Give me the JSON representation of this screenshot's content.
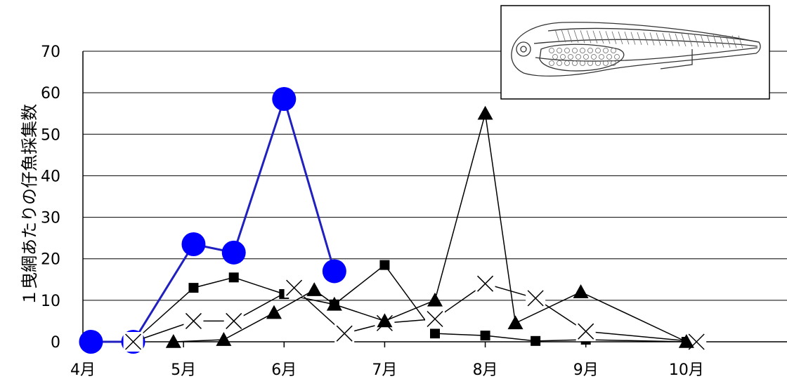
{
  "chart_data": {
    "type": "line",
    "title": "",
    "xlabel": "",
    "ylabel": "１曳網あたりの仔魚採集数",
    "ylim": [
      0,
      70
    ],
    "yticks": [
      0,
      10,
      20,
      30,
      40,
      50,
      60,
      70
    ],
    "xlim": [
      4.0,
      11.0
    ],
    "xticks": [
      {
        "value": 4,
        "label": "4月"
      },
      {
        "value": 5,
        "label": "5月"
      },
      {
        "value": 6,
        "label": "6月"
      },
      {
        "value": 7,
        "label": "7月"
      },
      {
        "value": 8,
        "label": "8月"
      },
      {
        "value": 9,
        "label": "9月"
      },
      {
        "value": 10,
        "label": "10月"
      }
    ],
    "grid": true,
    "inset_image": "fish-larva-illustration",
    "series": [
      {
        "marker": "circle",
        "color": "#0000ff",
        "line_color": "#2020c0",
        "points": [
          {
            "x": 4.08,
            "y": 0
          },
          {
            "x": 4.5,
            "y": 0
          },
          {
            "x": 5.1,
            "y": 23.5
          },
          {
            "x": 5.5,
            "y": 21.5
          },
          {
            "x": 6.0,
            "y": 58.5
          },
          {
            "x": 6.5,
            "y": 17.0
          }
        ]
      },
      {
        "marker": "square",
        "color": "#000000",
        "line_color": "#000000",
        "points": [
          {
            "x": 4.5,
            "y": 0
          },
          {
            "x": 5.1,
            "y": 13.0
          },
          {
            "x": 5.5,
            "y": 15.5
          },
          {
            "x": 6.0,
            "y": 11.5
          },
          {
            "x": 6.5,
            "y": 9.0
          },
          {
            "x": 7.0,
            "y": 18.5
          },
          {
            "x": 7.5,
            "y": 2.0
          },
          {
            "x": 8.0,
            "y": 1.5
          },
          {
            "x": 8.5,
            "y": 0.2
          },
          {
            "x": 9.0,
            "y": 0.5
          },
          {
            "x": 10.0,
            "y": 0
          }
        ]
      },
      {
        "marker": "x",
        "color": "#000000",
        "line_color": "#000000",
        "points": [
          {
            "x": 4.5,
            "y": 0
          },
          {
            "x": 5.1,
            "y": 5.0
          },
          {
            "x": 5.5,
            "y": 5.0
          },
          {
            "x": 6.1,
            "y": 13.0
          },
          {
            "x": 6.6,
            "y": 2.0
          },
          {
            "x": 7.0,
            "y": 4.5
          },
          {
            "x": 7.5,
            "y": 5.5
          },
          {
            "x": 8.0,
            "y": 14.0
          },
          {
            "x": 8.5,
            "y": 10.5
          },
          {
            "x": 9.0,
            "y": 2.5
          },
          {
            "x": 10.1,
            "y": 0
          }
        ]
      },
      {
        "marker": "triangle",
        "color": "#000000",
        "line_color": "#000000",
        "points": [
          {
            "x": 4.9,
            "y": 0
          },
          {
            "x": 5.4,
            "y": 0.5
          },
          {
            "x": 5.9,
            "y": 7.0
          },
          {
            "x": 6.3,
            "y": 12.5
          },
          {
            "x": 6.5,
            "y": 9.0
          },
          {
            "x": 7.0,
            "y": 5.0
          },
          {
            "x": 7.5,
            "y": 10.0
          },
          {
            "x": 8.0,
            "y": 55.0
          },
          {
            "x": 8.3,
            "y": 4.5
          },
          {
            "x": 8.95,
            "y": 12.0
          },
          {
            "x": 10.0,
            "y": 0
          }
        ]
      }
    ]
  }
}
